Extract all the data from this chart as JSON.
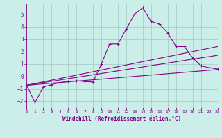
{
  "background_color": "#cceee8",
  "grid_color": "#aacccc",
  "line_color": "#880088",
  "xlabel": "Windchill (Refroidissement éolien,°C)",
  "xlim": [
    0,
    23
  ],
  "ylim": [
    -2.5,
    5.8
  ],
  "yticks": [
    -2,
    -1,
    0,
    1,
    2,
    3,
    4,
    5
  ],
  "xticks": [
    0,
    1,
    2,
    3,
    4,
    5,
    6,
    7,
    8,
    9,
    10,
    11,
    12,
    13,
    14,
    15,
    16,
    17,
    18,
    19,
    20,
    21,
    22,
    23
  ],
  "series1_x": [
    0,
    1,
    2,
    3,
    4,
    5,
    6,
    7,
    8,
    9,
    10,
    11,
    12,
    13,
    14,
    15,
    16,
    17,
    18,
    19,
    20,
    21,
    22,
    23
  ],
  "series1_y": [
    -0.7,
    -2.1,
    -0.85,
    -0.65,
    -0.5,
    -0.4,
    -0.35,
    -0.4,
    -0.45,
    1.0,
    2.6,
    2.6,
    3.8,
    5.0,
    5.5,
    4.4,
    4.2,
    3.5,
    2.4,
    2.4,
    1.5,
    0.85,
    0.7,
    0.6
  ],
  "line2_x": [
    0,
    23
  ],
  "line2_y": [
    -0.7,
    2.4
  ],
  "line3_x": [
    0,
    23
  ],
  "line3_y": [
    -0.7,
    0.55
  ],
  "line4_x": [
    0,
    23
  ],
  "line4_y": [
    -0.7,
    1.7
  ]
}
